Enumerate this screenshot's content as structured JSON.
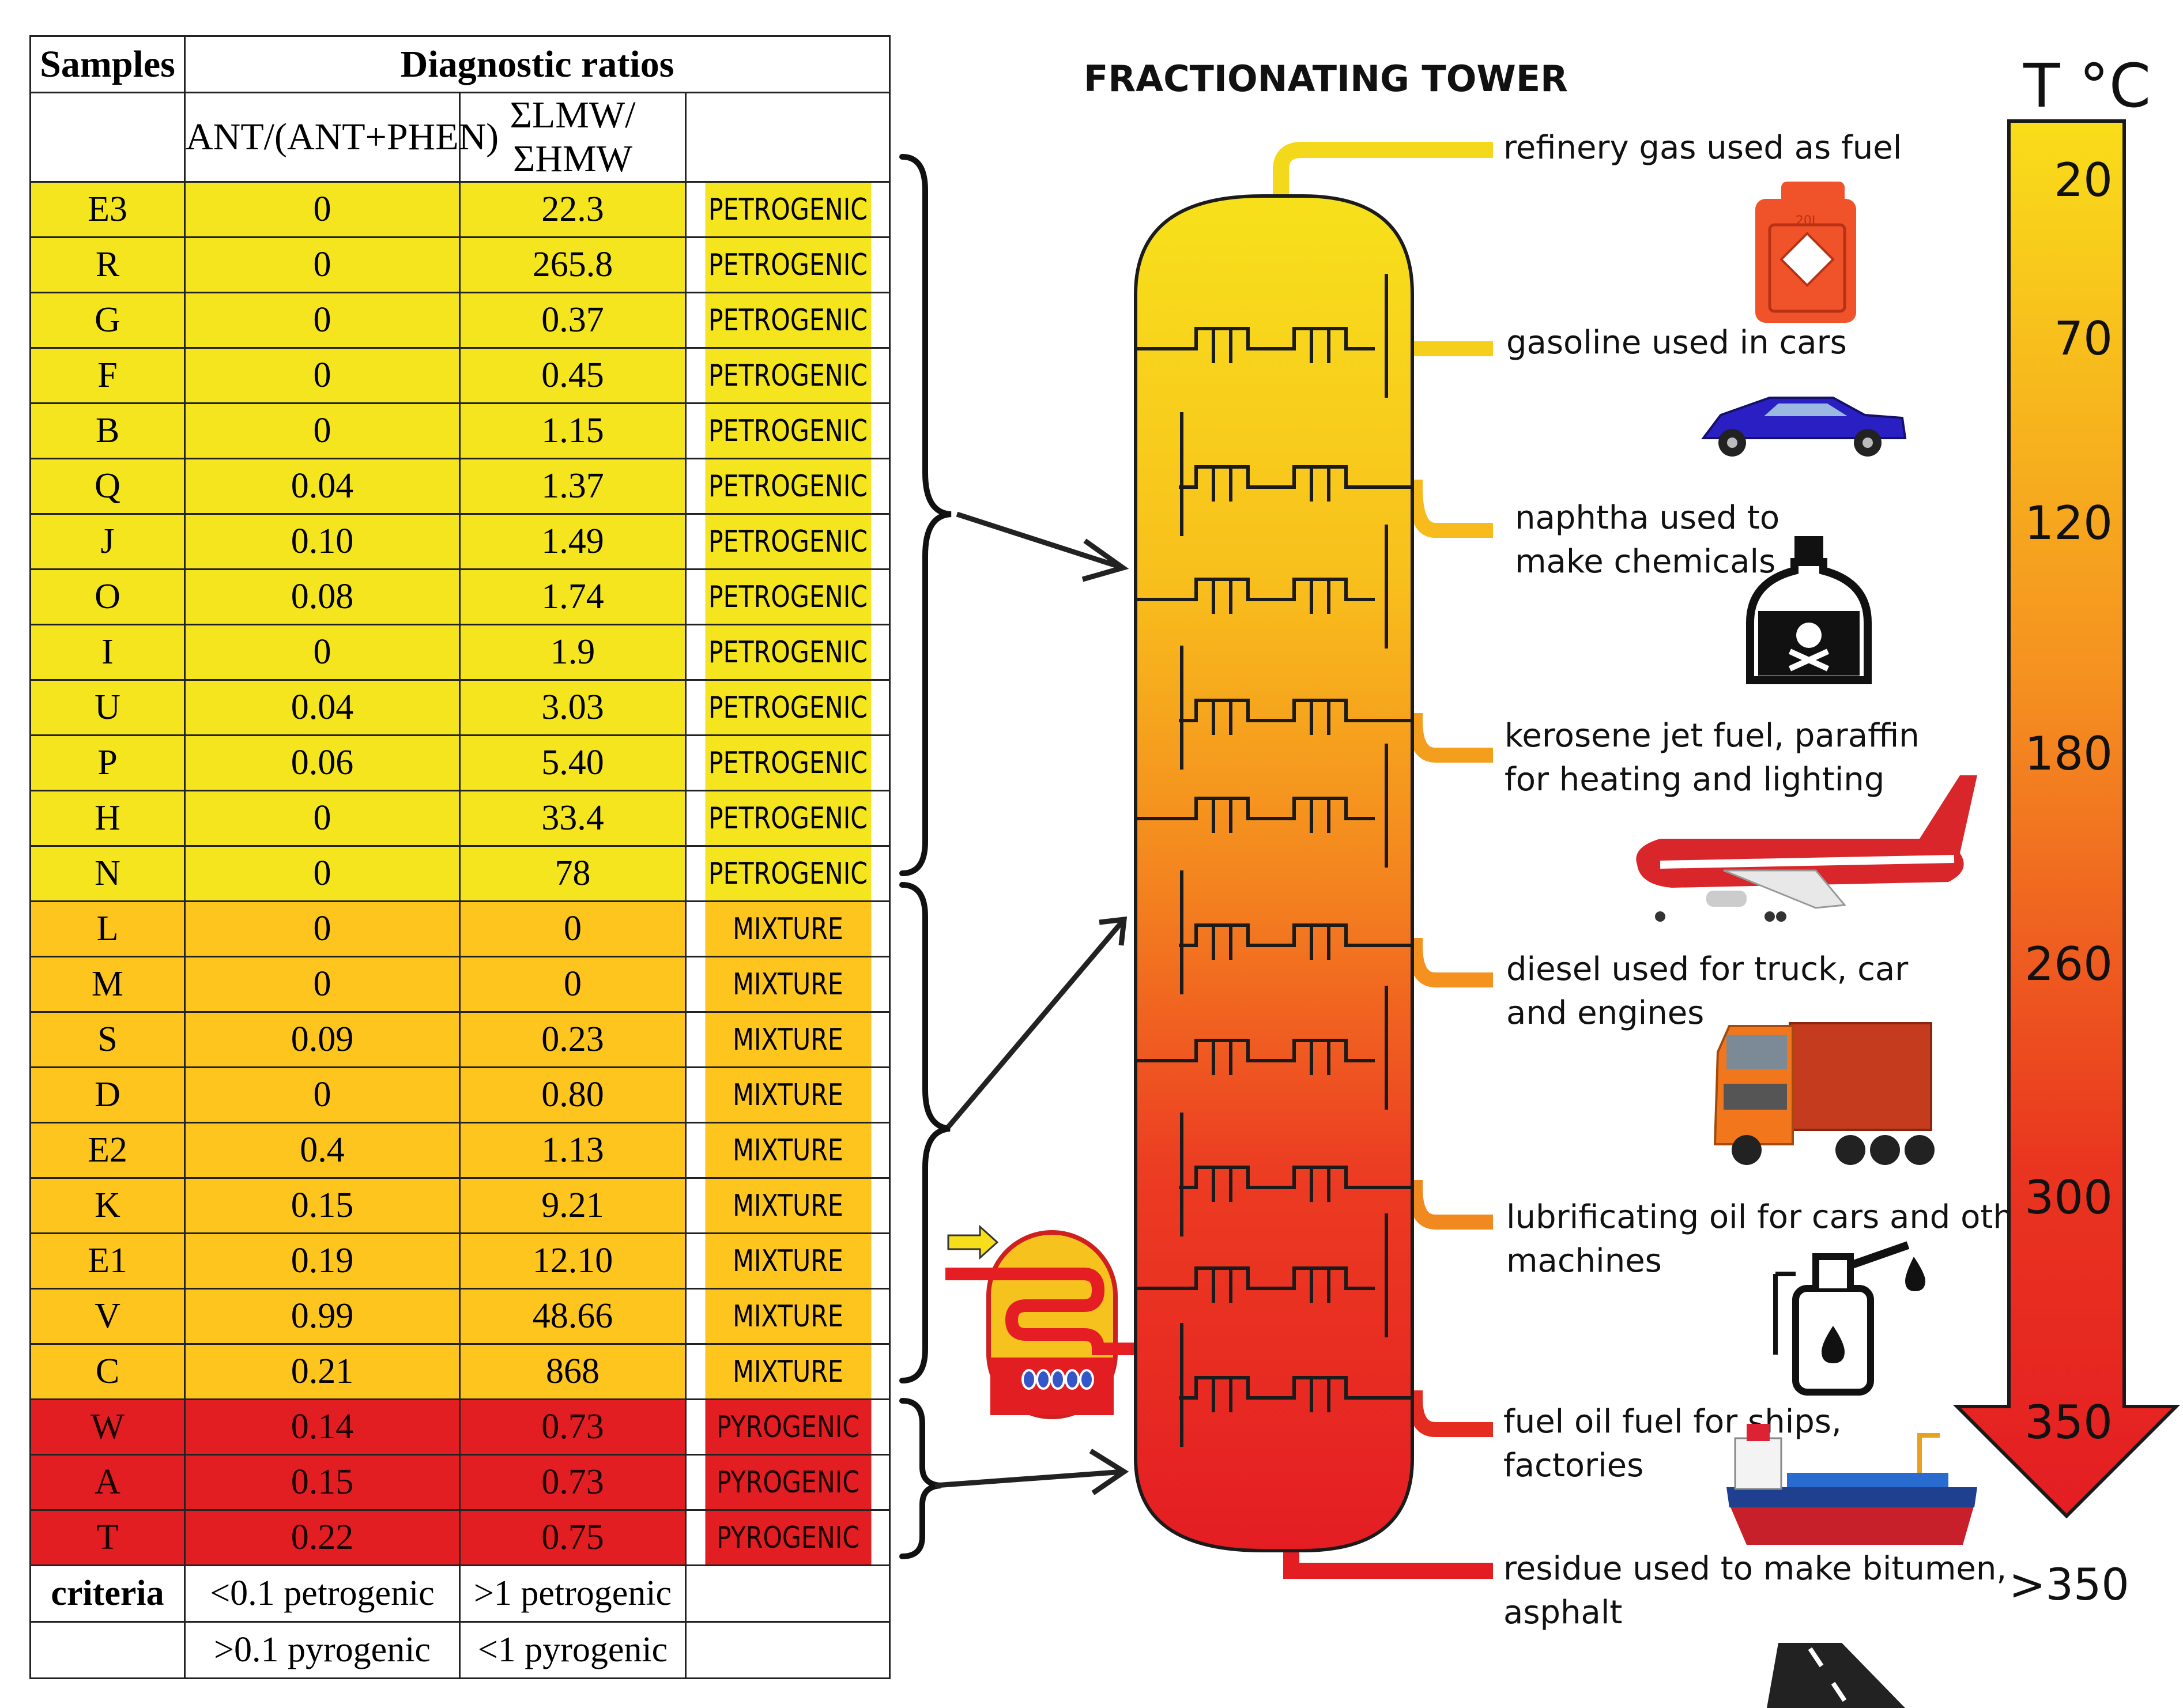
{
  "table": {
    "header": {
      "samples": "Samples",
      "ratios": "Diagnostic ratios"
    },
    "subheader": {
      "col1": "ANT/(ANT+PHEN)",
      "col2": "ΣLMW/ΣHMW"
    },
    "rows": [
      {
        "sample": "E3",
        "ant": "0",
        "lmw": "22.3",
        "class": "PETROGENIC"
      },
      {
        "sample": "R",
        "ant": "0",
        "lmw": "265.8",
        "class": "PETROGENIC"
      },
      {
        "sample": "G",
        "ant": "0",
        "lmw": "0.37",
        "class": "PETROGENIC"
      },
      {
        "sample": "F",
        "ant": "0",
        "lmw": "0.45",
        "class": "PETROGENIC"
      },
      {
        "sample": "B",
        "ant": "0",
        "lmw": "1.15",
        "class": "PETROGENIC"
      },
      {
        "sample": "Q",
        "ant": "0.04",
        "lmw": "1.37",
        "class": "PETROGENIC"
      },
      {
        "sample": "J",
        "ant": "0.10",
        "lmw": "1.49",
        "class": "PETROGENIC"
      },
      {
        "sample": "O",
        "ant": "0.08",
        "lmw": "1.74",
        "class": "PETROGENIC"
      },
      {
        "sample": "I",
        "ant": "0",
        "lmw": "1.9",
        "class": "PETROGENIC"
      },
      {
        "sample": "U",
        "ant": "0.04",
        "lmw": "3.03",
        "class": "PETROGENIC"
      },
      {
        "sample": "P",
        "ant": "0.06",
        "lmw": "5.40",
        "class": "PETROGENIC"
      },
      {
        "sample": "H",
        "ant": "0",
        "lmw": "33.4",
        "class": "PETROGENIC"
      },
      {
        "sample": "N",
        "ant": "0",
        "lmw": "78",
        "class": "PETROGENIC"
      },
      {
        "sample": "L",
        "ant": "0",
        "lmw": "0",
        "class": "MIXTURE"
      },
      {
        "sample": "M",
        "ant": "0",
        "lmw": "0",
        "class": "MIXTURE"
      },
      {
        "sample": "S",
        "ant": "0.09",
        "lmw": "0.23",
        "class": "MIXTURE"
      },
      {
        "sample": "D",
        "ant": "0",
        "lmw": "0.80",
        "class": "MIXTURE"
      },
      {
        "sample": "E2",
        "ant": "0.4",
        "lmw": "1.13",
        "class": "MIXTURE"
      },
      {
        "sample": "K",
        "ant": "0.15",
        "lmw": "9.21",
        "class": "MIXTURE"
      },
      {
        "sample": "E1",
        "ant": "0.19",
        "lmw": "12.10",
        "class": "MIXTURE"
      },
      {
        "sample": "V",
        "ant": "0.99",
        "lmw": "48.66",
        "class": "MIXTURE"
      },
      {
        "sample": "C",
        "ant": "0.21",
        "lmw": "868",
        "class": "MIXTURE"
      },
      {
        "sample": "W",
        "ant": "0.14",
        "lmw": "0.73",
        "class": "PYROGENIC"
      },
      {
        "sample": "A",
        "ant": "0.15",
        "lmw": "0.73",
        "class": "PYROGENIC"
      },
      {
        "sample": "T",
        "ant": "0.22",
        "lmw": "0.75",
        "class": "PYROGENIC"
      }
    ],
    "criteria": {
      "label": "criteria",
      "ant_petro": "<0.1 petrogenic",
      "ant_pyro": ">0.1 pyrogenic",
      "lmw_petro": ">1 petrogenic",
      "lmw_pyro": "<1 pyrogenic"
    }
  },
  "colors": {
    "petrogenic": "#f4e51e",
    "mixture": "#fdc51d",
    "pyrogenic": "#e21e22"
  },
  "tower": {
    "title": "FRACTIONATING TOWER",
    "products": [
      {
        "lines": [
          "refinery gas used as fuel"
        ],
        "icon": "gas-can-icon",
        "icon_label": "20L"
      },
      {
        "lines": [
          "gasoline used in cars"
        ],
        "icon": "car-icon"
      },
      {
        "lines": [
          "naphtha used to",
          "make chemicals"
        ],
        "icon": "poison-bottle-icon"
      },
      {
        "lines": [
          "kerosene jet fuel, paraffin",
          "for heating and lighting"
        ],
        "icon": "airplane-icon"
      },
      {
        "lines": [
          "diesel  used for truck, car",
          "and engines"
        ],
        "icon": "truck-icon"
      },
      {
        "lines": [
          "lubrificating oil for cars and other",
          "machines"
        ],
        "icon": "oil-can-icon"
      },
      {
        "lines": [
          "fuel oil  fuel for ships,",
          "factories"
        ],
        "icon": "ship-icon"
      },
      {
        "lines": [
          "residue used to make bitumen,",
          "asphalt"
        ],
        "icon": "road-icon"
      }
    ]
  },
  "temperature": {
    "title": "T °C",
    "ticks": [
      "20",
      "70",
      "120",
      "180",
      "260",
      "300",
      "350"
    ],
    "below": ">350"
  }
}
